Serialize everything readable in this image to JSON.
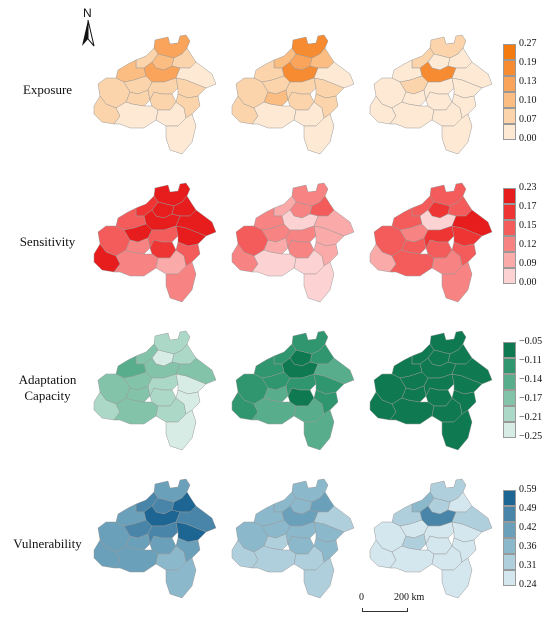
{
  "north_label": "N",
  "scalebar": {
    "zero": "0",
    "distance": "200 km"
  },
  "outline_color": "#9a9a9a",
  "rows": [
    {
      "label_lines": [
        "Exposure"
      ],
      "palette": [
        "#fde9d4",
        "#fcd4ab",
        "#fbbd82",
        "#f9a45a",
        "#f78b31",
        "#f47b0f"
      ],
      "ticks": [
        "0.27",
        "0.19",
        "0.13",
        "0.10",
        "0.07",
        "0.00"
      ],
      "maps": [
        [
          3,
          2,
          1,
          1,
          3,
          2,
          1,
          1,
          1,
          0,
          1,
          1,
          1,
          1,
          0,
          0,
          1,
          0
        ],
        [
          4,
          3,
          2,
          2,
          4,
          1,
          1,
          1,
          1,
          0,
          2,
          1,
          1,
          1,
          0,
          0,
          1,
          0
        ],
        [
          1,
          0,
          0,
          1,
          4,
          0,
          0,
          0,
          1,
          0,
          0,
          0,
          0,
          0,
          0,
          0,
          0,
          0
        ]
      ]
    },
    {
      "label_lines": [
        "Sensitivity"
      ],
      "palette": [
        "#fdd2d2",
        "#fbaaaa",
        "#f88383",
        "#f45b5b",
        "#ef3434",
        "#e71d1d"
      ],
      "ticks": [
        "0.23",
        "0.17",
        "0.15",
        "0.12",
        "0.09",
        "0.00"
      ],
      "maps": [
        [
          5,
          5,
          5,
          4,
          5,
          3,
          3,
          5,
          5,
          5,
          2,
          3,
          5,
          4,
          2,
          1,
          3,
          2
        ],
        [
          2,
          2,
          3,
          1,
          0,
          2,
          3,
          2,
          2,
          1,
          1,
          2,
          1,
          2,
          0,
          0,
          1,
          0
        ],
        [
          3,
          4,
          3,
          3,
          0,
          3,
          3,
          1,
          2,
          5,
          3,
          4,
          4,
          3,
          3,
          2,
          3,
          2
        ]
      ]
    },
    {
      "label_lines": [
        "Adaptation",
        "Capacity"
      ],
      "palette": [
        "#d6ece4",
        "#acd8c8",
        "#82c3aa",
        "#58ad8c",
        "#2f9670",
        "#0f7a52"
      ],
      "ticks": [
        "−0.05",
        "−0.11",
        "−0.14",
        "−0.17",
        "−0.21",
        "−0.25"
      ],
      "maps": [
        [
          1,
          0,
          1,
          2,
          2,
          3,
          2,
          1,
          2,
          2,
          2,
          1,
          0,
          1,
          2,
          1,
          0,
          0
        ],
        [
          4,
          5,
          4,
          4,
          5,
          4,
          4,
          4,
          4,
          3,
          3,
          4,
          4,
          5,
          3,
          3,
          4,
          3
        ],
        [
          5,
          5,
          5,
          5,
          5,
          5,
          5,
          5,
          5,
          5,
          5,
          5,
          5,
          5,
          5,
          5,
          5,
          5
        ]
      ]
    },
    {
      "label_lines": [
        "Vulnerability"
      ],
      "palette": [
        "#d4e6ee",
        "#b0cfdd",
        "#8cb8cc",
        "#6ba0bb",
        "#4985a8",
        "#1d6592"
      ],
      "ticks": [
        "0.59",
        "0.49",
        "0.42",
        "0.36",
        "0.31",
        "0.24"
      ],
      "maps": [
        [
          3,
          4,
          5,
          4,
          5,
          3,
          3,
          3,
          4,
          4,
          3,
          4,
          5,
          3,
          3,
          2,
          3,
          2
        ],
        [
          2,
          2,
          3,
          2,
          3,
          2,
          2,
          1,
          2,
          1,
          1,
          2,
          2,
          2,
          1,
          1,
          2,
          1
        ],
        [
          1,
          1,
          0,
          2,
          4,
          1,
          0,
          0,
          0,
          1,
          1,
          0,
          0,
          0,
          0,
          0,
          0,
          0
        ]
      ]
    }
  ]
}
